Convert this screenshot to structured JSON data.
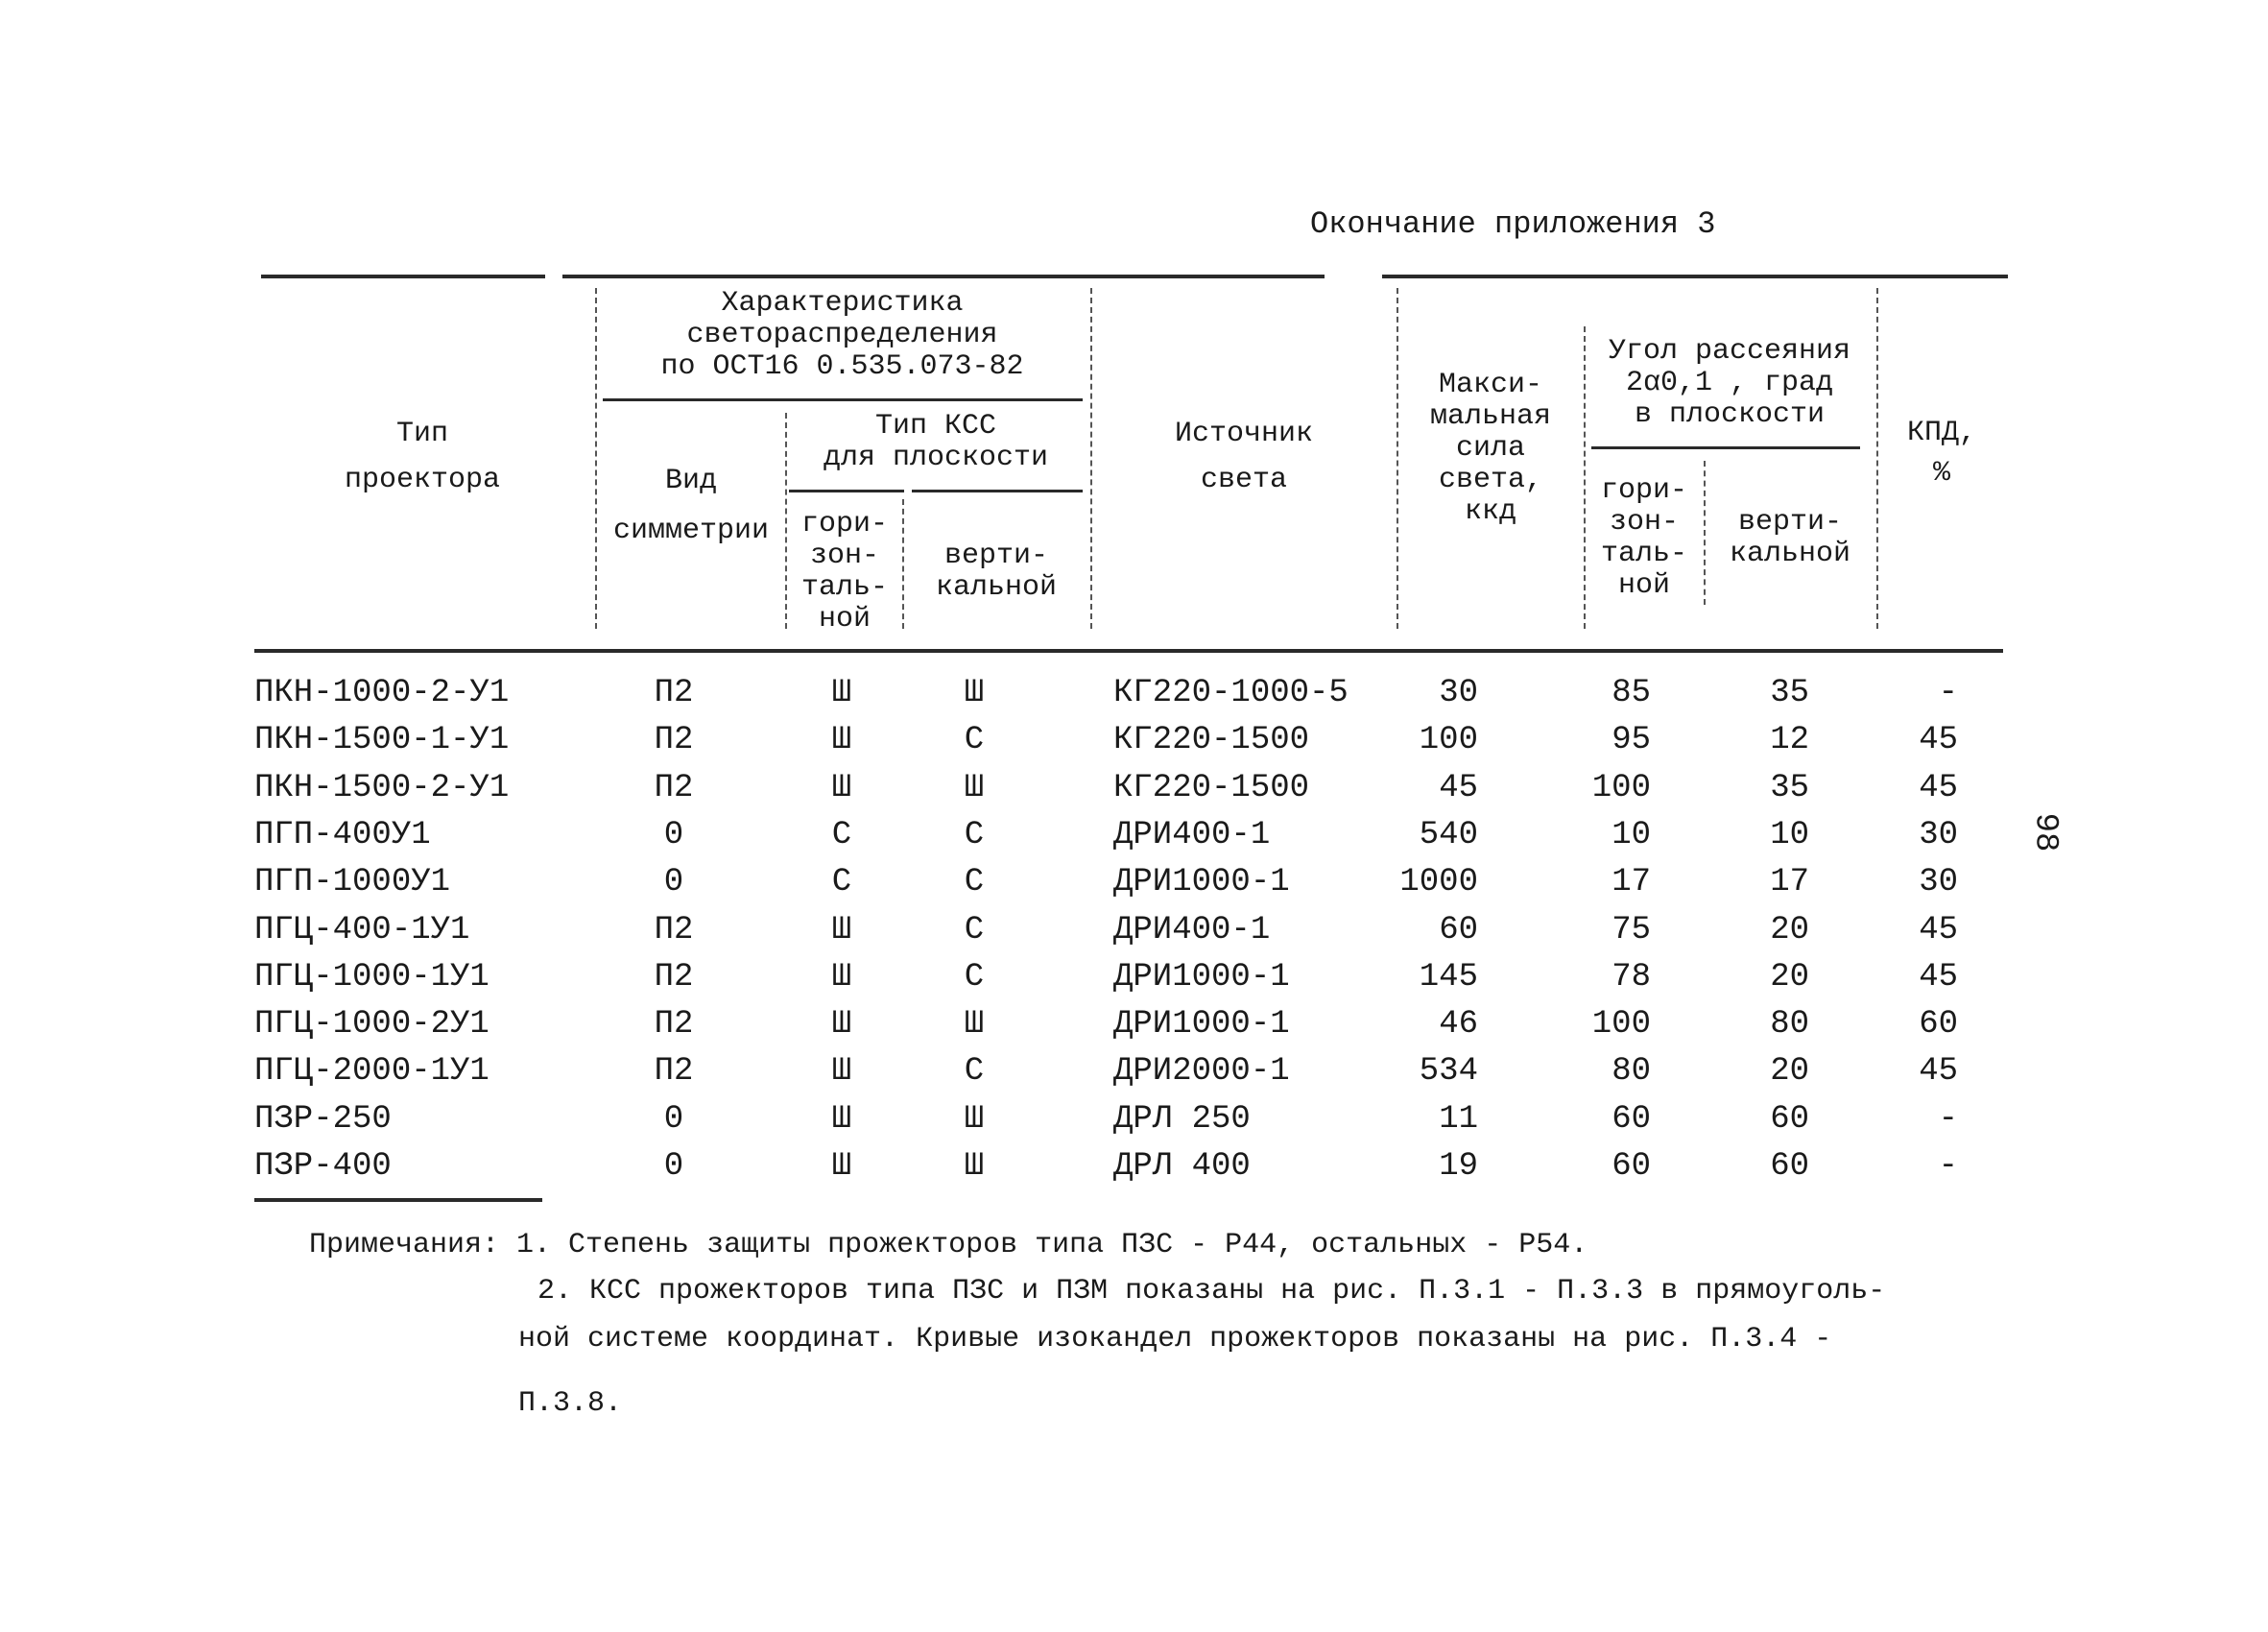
{
  "page_heading": "Окончание приложения 3",
  "page_number": "98",
  "table": {
    "headers": {
      "type": [
        "Тип",
        "проектора"
      ],
      "characteristic": [
        "Характеристика",
        "светораспределения",
        "по ОСТ16 0.535.073-82"
      ],
      "symmetry": [
        "Вид",
        "симметрии"
      ],
      "kss_type": [
        "Тип КСС",
        "для плоскости"
      ],
      "kss_horizontal": [
        "гори-",
        "зон-",
        "таль-",
        "ной"
      ],
      "kss_vertical": [
        "верти-",
        "кальной"
      ],
      "source": [
        "Источник",
        "света"
      ],
      "max_intensity": [
        "Макси-",
        "мальная",
        "сила",
        "света,",
        "ккд"
      ],
      "angle": [
        "Угол рассеяния",
        "2α0,1 , град",
        "в плоскости"
      ],
      "angle_horizontal": [
        "гори-",
        "зон-",
        "таль-",
        "ной"
      ],
      "angle_vertical": [
        "верти-",
        "кальной"
      ],
      "efficiency": [
        "КПД,",
        "%"
      ]
    },
    "rows": [
      {
        "type": "ПКН-1000-2-У1",
        "symmetry": "П2",
        "kss_h": "Ш",
        "kss_v": "Ш",
        "source": "КГ220-1000-5",
        "max": "30",
        "angle_h": "85",
        "angle_v": "35",
        "kpd": "-"
      },
      {
        "type": "ПКН-1500-1-У1",
        "symmetry": "П2",
        "kss_h": "Ш",
        "kss_v": "С",
        "source": "КГ220-1500",
        "max": "100",
        "angle_h": "95",
        "angle_v": "12",
        "kpd": "45"
      },
      {
        "type": "ПКН-1500-2-У1",
        "symmetry": "П2",
        "kss_h": "Ш",
        "kss_v": "Ш",
        "source": "КГ220-1500",
        "max": "45",
        "angle_h": "100",
        "angle_v": "35",
        "kpd": "45"
      },
      {
        "type": "ПГП-400У1",
        "symmetry": "0",
        "kss_h": "С",
        "kss_v": "С",
        "source": "ДРИ400-1",
        "max": "540",
        "angle_h": "10",
        "angle_v": "10",
        "kpd": "30"
      },
      {
        "type": "ПГП-1000У1",
        "symmetry": "0",
        "kss_h": "С",
        "kss_v": "С",
        "source": "ДРИ1000-1",
        "max": "1000",
        "angle_h": "17",
        "angle_v": "17",
        "kpd": "30"
      },
      {
        "type": "ПГЦ-400-1У1",
        "symmetry": "П2",
        "kss_h": "Ш",
        "kss_v": "С",
        "source": "ДРИ400-1",
        "max": "60",
        "angle_h": "75",
        "angle_v": "20",
        "kpd": "45"
      },
      {
        "type": "ПГЦ-1000-1У1",
        "symmetry": "П2",
        "kss_h": "Ш",
        "kss_v": "С",
        "source": "ДРИ1000-1",
        "max": "145",
        "angle_h": "78",
        "angle_v": "20",
        "kpd": "45"
      },
      {
        "type": "ПГЦ-1000-2У1",
        "symmetry": "П2",
        "kss_h": "Ш",
        "kss_v": "Ш",
        "source": "ДРИ1000-1",
        "max": "46",
        "angle_h": "100",
        "angle_v": "80",
        "kpd": "60"
      },
      {
        "type": "ПГЦ-2000-1У1",
        "symmetry": "П2",
        "kss_h": "Ш",
        "kss_v": "С",
        "source": "ДРИ2000-1",
        "max": "534",
        "angle_h": "80",
        "angle_v": "20",
        "kpd": "45"
      },
      {
        "type": "ПЗР-250",
        "symmetry": "0",
        "kss_h": "Ш",
        "kss_v": "Ш",
        "source": "ДРЛ 250",
        "max": "11",
        "angle_h": "60",
        "angle_v": "60",
        "kpd": "-"
      },
      {
        "type": "ПЗР-400",
        "symmetry": "0",
        "kss_h": "Ш",
        "kss_v": "Ш",
        "source": "ДРЛ 400",
        "max": "19",
        "angle_h": "60",
        "angle_v": "60",
        "kpd": "-"
      }
    ]
  },
  "notes": {
    "line1": "Примечания: 1. Степень защиты прожекторов типа ПЗС -  Р44, остальных -  Р54.",
    "line2": "2. КСС прожекторов типа ПЗС и ПЗМ показаны на рис. П.3.1 - П.3.3 в прямоуголь-",
    "line3": "ной системе координат. Кривые изокандел прожекторов показаны на рис. П.3.4 -",
    "line4": "П.3.8."
  }
}
